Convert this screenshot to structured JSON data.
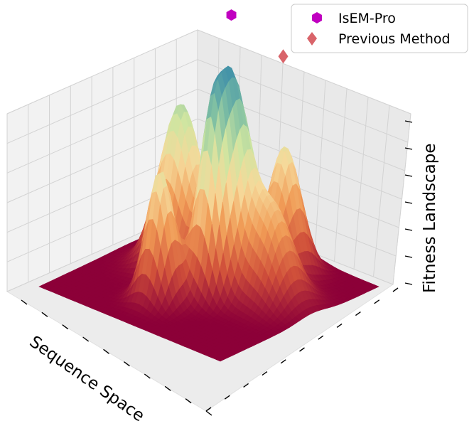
{
  "chart_data": {
    "type": "surface3d",
    "xlabel": "Sequence Space",
    "zlabel": "Fitness Landscape",
    "grid": true,
    "legend_position": "top-right",
    "colormap": [
      "#8c0038",
      "#d0503a",
      "#f09a55",
      "#f6d99a",
      "#cfe5a1",
      "#7fbfa3",
      "#3e8fa9",
      "#2f5a9c"
    ],
    "surface_peaks": [
      {
        "x": 0.55,
        "y": 0.3,
        "height": 0.6,
        "spread": 0.09
      },
      {
        "x": 0.55,
        "y": 0.58,
        "height": 0.72,
        "spread": 0.08
      },
      {
        "x": 0.42,
        "y": 0.58,
        "height": 0.5,
        "spread": 0.06
      },
      {
        "x": 0.82,
        "y": 0.64,
        "height": 0.46,
        "spread": 0.07
      },
      {
        "x": 0.58,
        "y": 0.78,
        "height": 0.34,
        "spread": 0.09
      },
      {
        "x": 0.25,
        "y": 0.45,
        "height": 0.48,
        "spread": 0.06
      }
    ],
    "series": [
      {
        "name": "IsEM-Pro",
        "marker": "hexagon",
        "color": "#c000c0",
        "point": [
          0.55,
          0.58,
          1.0
        ]
      },
      {
        "name": "Previous Method",
        "marker": "diamond",
        "color": "#d9646a",
        "point": [
          0.74,
          0.7,
          0.83
        ]
      }
    ]
  }
}
